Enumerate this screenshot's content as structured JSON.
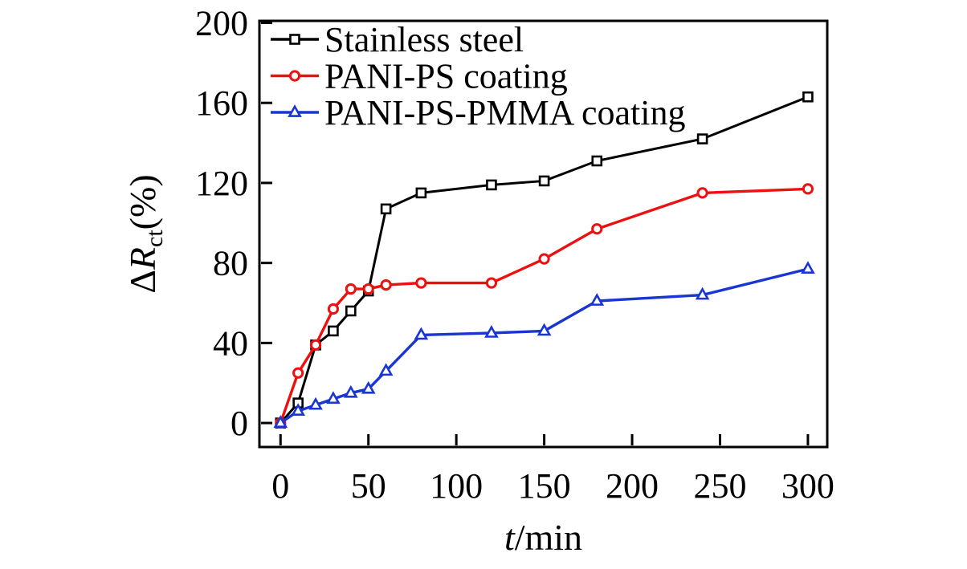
{
  "figure": {
    "background": "#ffffff",
    "frame_color": "#000000"
  },
  "chart_data": {
    "type": "line",
    "x": [
      0,
      10,
      20,
      30,
      40,
      50,
      60,
      80,
      120,
      150,
      180,
      240,
      300
    ],
    "series": [
      {
        "name": "Stainless steel",
        "color": "#000000",
        "marker": "square",
        "values": [
          0,
          10,
          39,
          46,
          56,
          66,
          107,
          115,
          119,
          121,
          131,
          142,
          163
        ]
      },
      {
        "name": "PANI-PS coating",
        "color": "#ed1010",
        "marker": "circle",
        "values": [
          0,
          25,
          39,
          57,
          67,
          67,
          69,
          70,
          70,
          82,
          97,
          115,
          117
        ]
      },
      {
        "name": "PANI-PS-PMMA coating",
        "color": "#1935d2",
        "marker": "triangle",
        "values": [
          0,
          6,
          9,
          12,
          15,
          17,
          26,
          44,
          45,
          46,
          61,
          64,
          77
        ]
      }
    ],
    "xlabel": {
      "symbol": "t",
      "rest": "/min"
    },
    "ylabel": {
      "prefix": "Δ",
      "symbol": "R",
      "sub": "ct",
      "rest": "(%)"
    },
    "xticks": [
      0,
      50,
      100,
      150,
      200,
      250,
      300
    ],
    "yticks": [
      0,
      40,
      80,
      120,
      160,
      200
    ],
    "xlim": [
      -12,
      311
    ],
    "ylim": [
      -12,
      201
    ],
    "grid": false,
    "legend_position": "top-left",
    "marker_fill": "#ffffff"
  }
}
